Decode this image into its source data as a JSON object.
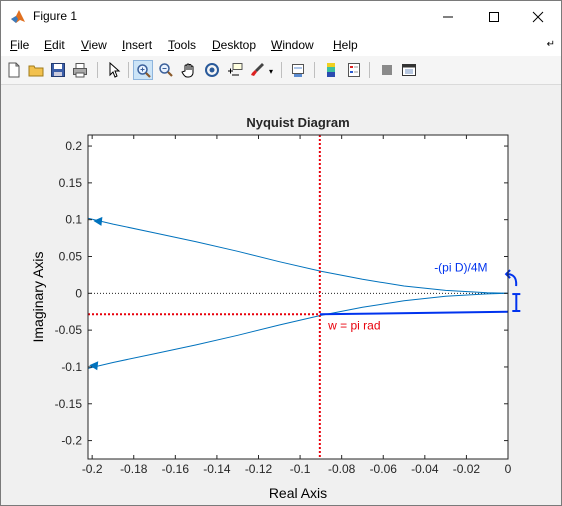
{
  "window": {
    "title": "Figure 1"
  },
  "menu": [
    "File",
    "Edit",
    "View",
    "Insert",
    "Tools",
    "Desktop",
    "Window",
    "Help"
  ],
  "menu_overflow_icon": "arrow-icon",
  "toolbar": [
    "new-figure-icon",
    "open-file-icon",
    "save-icon",
    "print-icon",
    "edit-plot-icon",
    "zoom-in-icon",
    "zoom-out-icon",
    "pan-icon",
    "rotate-3d-icon",
    "data-cursor-icon",
    "brush-icon",
    "link-plot-icon",
    "insert-colorbar-icon",
    "insert-legend-icon",
    "hide-plot-tools-icon",
    "show-plot-tools-icon"
  ],
  "colors": {
    "curve": "#0072bd",
    "annotation_red": "#e8000b",
    "annotation_blue": "#0033ee"
  },
  "chart_data": {
    "type": "line",
    "title": "Nyquist Diagram",
    "xlabel": "Real Axis",
    "ylabel": "Imaginary Axis",
    "xlim": [
      -0.202,
      0
    ],
    "ylim": [
      -0.225,
      0.215
    ],
    "xticks": [
      -0.2,
      -0.18,
      -0.16,
      -0.14,
      -0.12,
      -0.1,
      -0.08,
      -0.06,
      -0.04,
      -0.02,
      0
    ],
    "xtick_labels": [
      "-0.2",
      "-0.18",
      "-0.16",
      "-0.14",
      "-0.12",
      "-0.1",
      "-0.08",
      "-0.06",
      "-0.04",
      "-0.02",
      "0"
    ],
    "yticks": [
      0.2,
      0.15,
      0.1,
      0.05,
      0,
      -0.05,
      -0.1,
      -0.15,
      -0.2
    ],
    "ytick_labels": [
      "0.2",
      "0.15",
      "0.1",
      "0.05",
      "0",
      "-0.05",
      "-0.1",
      "-0.15",
      "-0.2"
    ],
    "grid": false,
    "series": [
      {
        "x": [
          -0.202,
          -0.19,
          -0.17,
          -0.15,
          -0.13,
          -0.11,
          -0.09,
          -0.07,
          -0.05,
          -0.03,
          -0.01,
          0
        ],
        "y": [
          0.102,
          0.094,
          0.082,
          0.07,
          0.057,
          0.043,
          0.03,
          0.019,
          0.01,
          0.004,
          0.0008,
          0
        ]
      },
      {
        "x": [
          -0.202,
          -0.19,
          -0.17,
          -0.15,
          -0.13,
          -0.11,
          -0.09,
          -0.07,
          -0.05,
          -0.03,
          -0.01,
          0
        ],
        "y": [
          -0.102,
          -0.094,
          -0.082,
          -0.07,
          -0.057,
          -0.043,
          -0.03,
          -0.019,
          -0.01,
          -0.004,
          -0.0008,
          0
        ]
      }
    ],
    "arrows": [
      {
        "x": -0.197,
        "y": 0.097,
        "direction": "left"
      },
      {
        "x": -0.199,
        "y": -0.099,
        "direction": "left"
      }
    ],
    "reference_lines": [
      {
        "orientation": "horizontal",
        "y": 0,
        "style": "dotted",
        "color": "#000000"
      }
    ],
    "annotations": [
      {
        "kind": "vline",
        "x": -0.0905,
        "style": "dotted",
        "color": "#e8000b"
      },
      {
        "kind": "hline",
        "y": -0.0285,
        "from_x": -0.202,
        "to_x": -0.0905,
        "style": "dotted",
        "color": "#e8000b"
      },
      {
        "kind": "text",
        "text": "w = pi rad",
        "x": -0.0865,
        "y": -0.049,
        "color": "#e8000b"
      },
      {
        "kind": "segment",
        "x1": -0.0905,
        "y1": -0.0285,
        "x2": 0,
        "y2": -0.025,
        "color": "#0033ee"
      },
      {
        "kind": "text",
        "text": "-(pi D)/4M",
        "x": -0.0355,
        "y": 0.0295,
        "color": "#0033ee"
      },
      {
        "kind": "ibeam",
        "x": 0.004,
        "y1": -0.001,
        "y2": -0.024,
        "color": "#0033ee"
      },
      {
        "kind": "curved-arrow",
        "x": 0.0015,
        "y": 0.018,
        "color": "#0033ee"
      }
    ]
  }
}
